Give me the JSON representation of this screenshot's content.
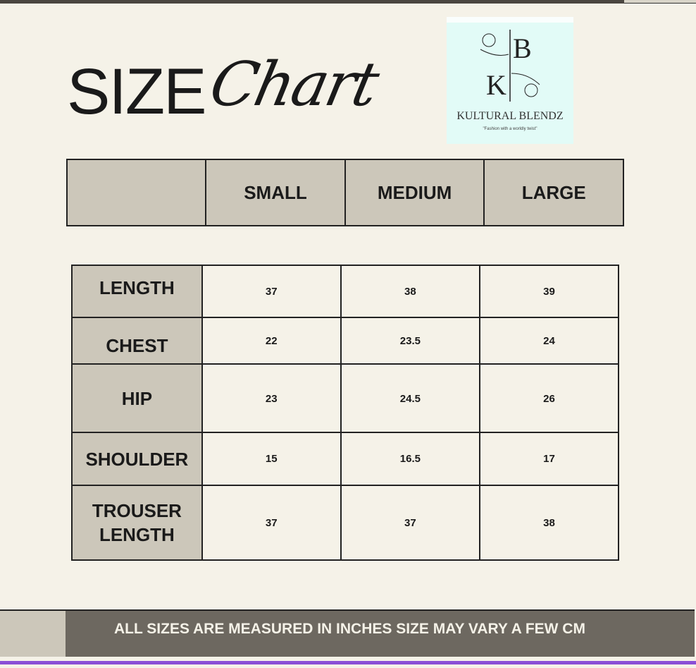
{
  "title": {
    "word": "SIZE",
    "script": "Chart"
  },
  "logo": {
    "letters": "KB",
    "brand": "KULTURAL BLENDZ",
    "tagline": "\"Fashion with a worldly twist\""
  },
  "columns": [
    "SMALL",
    "MEDIUM",
    "LARGE"
  ],
  "rows": [
    {
      "label": "LENGTH",
      "values": [
        "37",
        "38",
        "39"
      ]
    },
    {
      "label": "CHEST",
      "values": [
        "22",
        "23.5",
        "24"
      ]
    },
    {
      "label": "HIP",
      "values": [
        "23",
        "24.5",
        "26"
      ]
    },
    {
      "label": "SHOULDER",
      "values": [
        "15",
        "16.5",
        "17"
      ]
    },
    {
      "label": "TROUSER LENGTH",
      "values": [
        "37",
        "37",
        "38"
      ]
    }
  ],
  "footer": "ALL SIZES ARE MEASURED IN INCHES SIZE MAY VARY A FEW CM",
  "colors": {
    "background": "#f5f2e8",
    "header_cell": "#ccc7ba",
    "footer": "#6d6860",
    "accent_line": "#8a4fd6",
    "logo_bg": "#e2fbf7"
  }
}
